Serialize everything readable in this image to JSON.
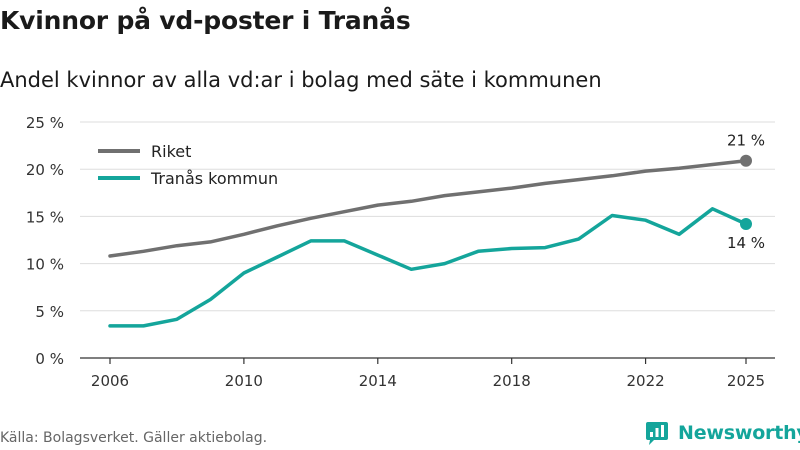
{
  "title": "Kvinnor på vd-poster i Tranås",
  "subtitle": "Andel kvinnor av alla vd:ar i bolag med säte i kommunen",
  "source": "Källa: Bolagsverket. Gäller aktiebolag.",
  "brand": "Newsworthy",
  "colors": {
    "riket": "#707070",
    "tranas": "#14a59b",
    "grid": "#dddddd",
    "axis": "#333333"
  },
  "chart_data": {
    "type": "line",
    "title": "Kvinnor på vd-poster i Tranås",
    "subtitle": "Andel kvinnor av alla vd:ar i bolag med säte i kommunen",
    "xlabel": "",
    "ylabel": "",
    "x": [
      2006,
      2007,
      2008,
      2009,
      2010,
      2011,
      2012,
      2013,
      2014,
      2015,
      2016,
      2017,
      2018,
      2019,
      2020,
      2021,
      2022,
      2023,
      2024,
      2025
    ],
    "xticks": [
      "2006",
      "2010",
      "2014",
      "2018",
      "2022",
      "2025"
    ],
    "xtick_values": [
      2006,
      2010,
      2014,
      2018,
      2022,
      2025
    ],
    "ylim": [
      0,
      25
    ],
    "yticks": [
      "0 %",
      "5 %",
      "10 %",
      "15 %",
      "20 %",
      "25 %"
    ],
    "ytick_values": [
      0,
      5,
      10,
      15,
      20,
      25
    ],
    "grid": true,
    "legend_position": "top-left",
    "series": [
      {
        "name": "Riket",
        "color": "#707070",
        "values": [
          10.8,
          11.3,
          11.9,
          12.3,
          13.1,
          14.0,
          14.8,
          15.5,
          16.2,
          16.6,
          17.2,
          17.6,
          18.0,
          18.5,
          18.9,
          19.3,
          19.8,
          20.1,
          20.5,
          20.9
        ],
        "end_label": "21 %"
      },
      {
        "name": "Tranås kommun",
        "color": "#14a59b",
        "values": [
          3.4,
          3.4,
          4.1,
          6.2,
          9.0,
          10.7,
          12.4,
          12.4,
          10.9,
          9.4,
          10.0,
          11.3,
          11.6,
          11.7,
          12.6,
          15.1,
          14.6,
          13.1,
          15.8,
          14.2
        ],
        "end_label": "14 %"
      }
    ]
  }
}
